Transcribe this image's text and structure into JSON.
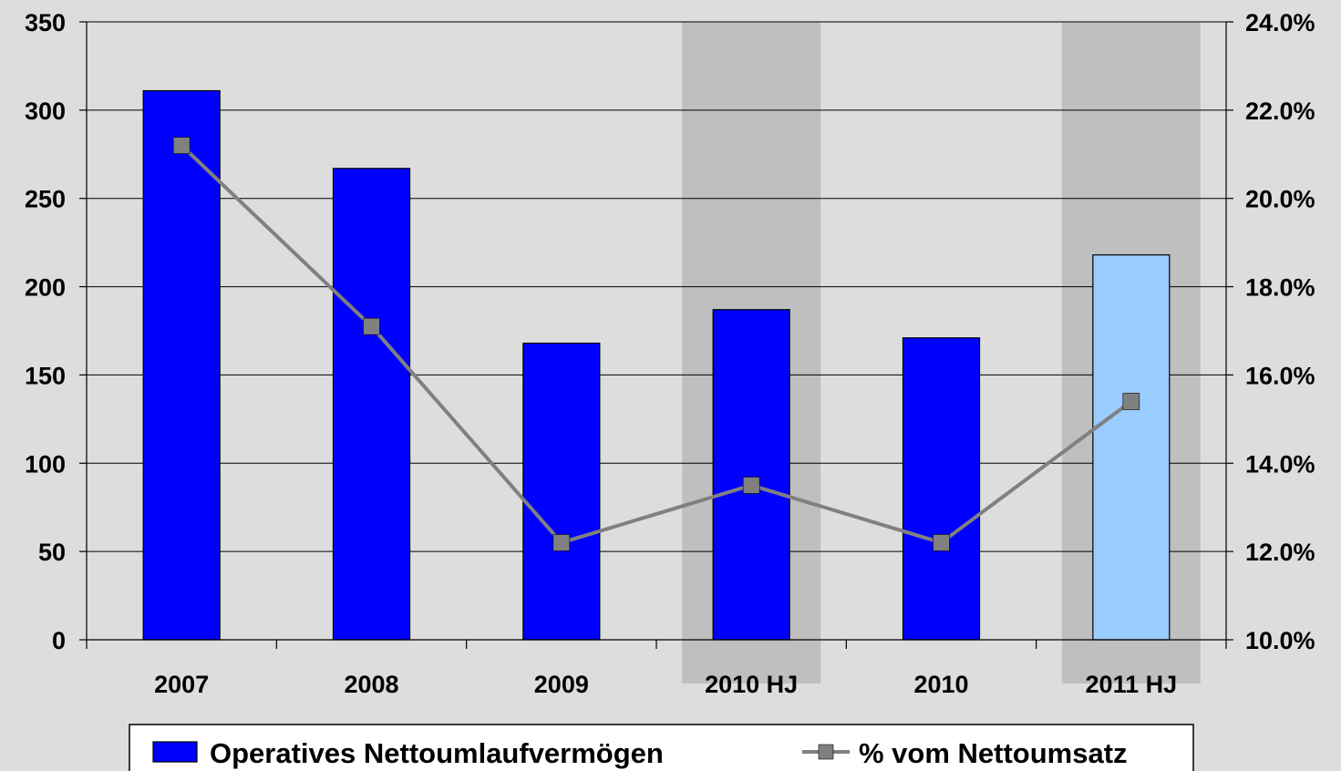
{
  "colors": {
    "background": "#DDDDDD",
    "highlight_band": "#BFBFBF",
    "bar": "#0000FF",
    "bar_highlight": "#99CCFF",
    "line": "#808080"
  },
  "chart_data": {
    "type": "bar",
    "categories": [
      "2007",
      "2008",
      "2009",
      "2010 HJ",
      "2010",
      "2011 HJ"
    ],
    "highlighted_categories": [
      "2010 HJ",
      "2011 HJ"
    ],
    "series": [
      {
        "name": "Operatives Nettoumlaufvermögen",
        "type": "bar",
        "axis": "left",
        "values": [
          311,
          267,
          168,
          187,
          171,
          218
        ],
        "light_bar_category": "2011 HJ"
      },
      {
        "name": "% vom Nettoumsatz",
        "type": "line",
        "axis": "right",
        "marker": "square",
        "values": [
          21.2,
          17.1,
          12.2,
          13.5,
          12.2,
          15.4
        ]
      }
    ],
    "y_left": {
      "min": 0,
      "max": 350,
      "ticks": [
        "0",
        "50",
        "100",
        "150",
        "200",
        "250",
        "300",
        "350"
      ]
    },
    "y_right": {
      "min": 10,
      "max": 24,
      "ticks": [
        "10.0%",
        "12.0%",
        "14.0%",
        "16.0%",
        "18.0%",
        "20.0%",
        "22.0%",
        "24.0%"
      ]
    },
    "grid": true,
    "legend": {
      "position": "bottom",
      "entries": [
        "Operatives Nettoumlaufvermögen",
        "% vom Nettoumsatz"
      ]
    }
  }
}
